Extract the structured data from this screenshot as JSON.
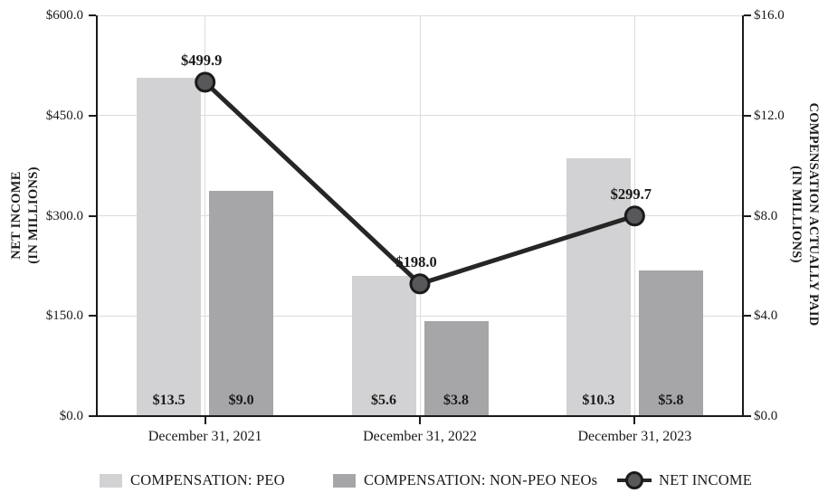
{
  "chart_data": {
    "type": "bar-line-combo",
    "categories": [
      "December 31, 2021",
      "December 31, 2022",
      "December 31, 2023"
    ],
    "series": [
      {
        "name": "COMPENSATION: PEO",
        "type": "bar",
        "axis": "right",
        "values": [
          13.5,
          5.6,
          10.3
        ],
        "labels": [
          "$13.5",
          "$5.6",
          "$10.3"
        ],
        "color": "#d2d2d4"
      },
      {
        "name": "COMPENSATION: NON-PEO NEOs",
        "type": "bar",
        "axis": "right",
        "values": [
          9.0,
          3.8,
          5.8
        ],
        "labels": [
          "$9.0",
          "$3.8",
          "$5.8"
        ],
        "color": "#a6a6a8"
      },
      {
        "name": "NET INCOME",
        "type": "line",
        "axis": "left",
        "values": [
          499.9,
          198.0,
          299.7
        ],
        "labels": [
          "$499.9",
          "$198.0",
          "$299.7"
        ],
        "color": "#262626",
        "marker_fill": "#58585a",
        "marker_stroke": "#1a1a1a"
      }
    ],
    "left_axis": {
      "title_line1": "NET INCOME",
      "title_line2": "(IN MILLIONS)",
      "range": [
        0,
        600
      ],
      "ticks": [
        {
          "label": "$600.0",
          "value": 600
        },
        {
          "label": "$450.0",
          "value": 450
        },
        {
          "label": "$300.0",
          "value": 300
        },
        {
          "label": "$150.0",
          "value": 150
        },
        {
          "label": "$0.0",
          "value": 0
        }
      ]
    },
    "right_axis": {
      "title_line1": "COMPENSATION ACTUALLY PAID",
      "title_line2": "(IN MILLIONS)",
      "range": [
        0,
        16
      ],
      "ticks": [
        {
          "label": "$16.0",
          "value": 16
        },
        {
          "label": "$12.0",
          "value": 12
        },
        {
          "label": "$8.0",
          "value": 8
        },
        {
          "label": "$4.0",
          "value": 4
        },
        {
          "label": "$0.0",
          "value": 0
        }
      ]
    },
    "grid": true,
    "legend_position": "bottom",
    "colors": {
      "gridline": "#dcdcdc",
      "axis": "#1a1a1a",
      "text": "#1a1a1a"
    }
  }
}
